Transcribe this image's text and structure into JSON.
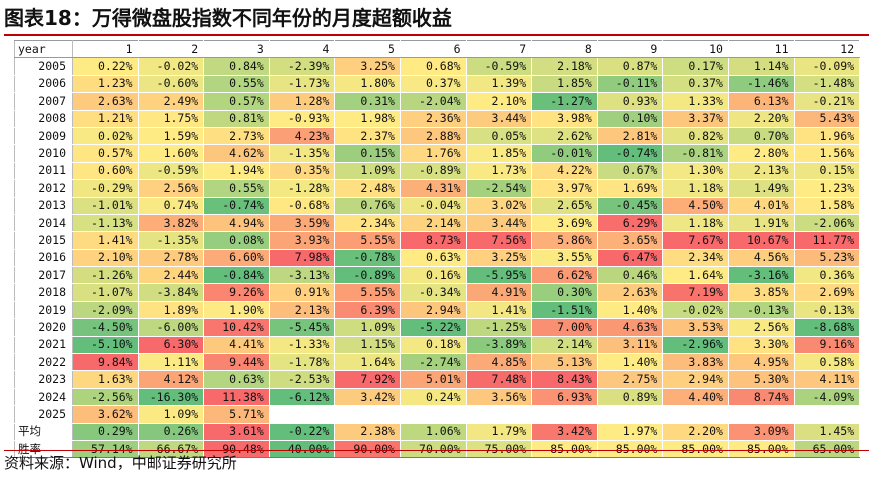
{
  "title": "图表18：万得微盘股指数不同年份的月度超额收益",
  "source": "资料来源：Wind，中邮证券研究所",
  "chart_data": {
    "type": "heatmap",
    "corner_label": "year",
    "columns": [
      "1",
      "2",
      "3",
      "4",
      "5",
      "6",
      "7",
      "8",
      "9",
      "10",
      "11",
      "12"
    ],
    "rows": [
      {
        "label": "2005",
        "cells": [
          "0.22%",
          "-0.02%",
          "0.84%",
          "-2.39%",
          "3.25%",
          "0.68%",
          "-0.59%",
          "2.18%",
          "0.87%",
          "0.17%",
          "1.14%",
          "-0.09%"
        ],
        "values": [
          0.22,
          -0.02,
          0.84,
          -2.39,
          3.25,
          0.68,
          -0.59,
          2.18,
          0.87,
          0.17,
          1.14,
          -0.09
        ]
      },
      {
        "label": "2006",
        "cells": [
          "1.23%",
          "-0.60%",
          "0.55%",
          "-1.73%",
          "1.80%",
          "0.37%",
          "1.39%",
          "1.85%",
          "-0.11%",
          "0.37%",
          "-1.46%",
          "-1.48%"
        ],
        "values": [
          1.23,
          -0.6,
          0.55,
          -1.73,
          1.8,
          0.37,
          1.39,
          1.85,
          -0.11,
          0.37,
          -1.46,
          -1.48
        ]
      },
      {
        "label": "2007",
        "cells": [
          "2.63%",
          "2.49%",
          "0.57%",
          "1.28%",
          "0.31%",
          "-2.04%",
          "2.10%",
          "-1.27%",
          "0.93%",
          "1.33%",
          "6.13%",
          "-0.21%"
        ],
        "values": [
          2.63,
          2.49,
          0.57,
          1.28,
          0.31,
          -2.04,
          2.1,
          -1.27,
          0.93,
          1.33,
          6.13,
          -0.21
        ]
      },
      {
        "label": "2008",
        "cells": [
          "1.21%",
          "1.75%",
          "0.81%",
          "-0.93%",
          "1.98%",
          "2.36%",
          "3.44%",
          "3.98%",
          "0.10%",
          "3.37%",
          "2.20%",
          "5.43%"
        ],
        "values": [
          1.21,
          1.75,
          0.81,
          -0.93,
          1.98,
          2.36,
          3.44,
          3.98,
          0.1,
          3.37,
          2.2,
          5.43
        ]
      },
      {
        "label": "2009",
        "cells": [
          "0.02%",
          "1.59%",
          "2.73%",
          "4.23%",
          "2.37%",
          "2.88%",
          "0.05%",
          "2.62%",
          "2.81%",
          "0.82%",
          "0.70%",
          "1.96%"
        ],
        "values": [
          0.02,
          1.59,
          2.73,
          4.23,
          2.37,
          2.88,
          0.05,
          2.62,
          2.81,
          0.82,
          0.7,
          1.96
        ]
      },
      {
        "label": "2010",
        "cells": [
          "0.57%",
          "1.60%",
          "4.62%",
          "-1.35%",
          "0.15%",
          "1.76%",
          "1.85%",
          "-0.01%",
          "-0.74%",
          "-0.81%",
          "2.80%",
          "1.56%"
        ],
        "values": [
          0.57,
          1.6,
          4.62,
          -1.35,
          0.15,
          1.76,
          1.85,
          -0.01,
          -0.74,
          -0.81,
          2.8,
          1.56
        ]
      },
      {
        "label": "2011",
        "cells": [
          "0.60%",
          "-0.59%",
          "1.94%",
          "0.35%",
          "1.09%",
          "-0.89%",
          "1.73%",
          "4.22%",
          "0.67%",
          "1.30%",
          "2.13%",
          "0.15%"
        ],
        "values": [
          0.6,
          -0.59,
          1.94,
          0.35,
          1.09,
          -0.89,
          1.73,
          4.22,
          0.67,
          1.3,
          2.13,
          0.15
        ]
      },
      {
        "label": "2012",
        "cells": [
          "-0.29%",
          "2.56%",
          "0.55%",
          "-1.28%",
          "2.48%",
          "4.31%",
          "-2.54%",
          "3.97%",
          "1.69%",
          "1.18%",
          "1.49%",
          "1.23%"
        ],
        "values": [
          -0.29,
          2.56,
          0.55,
          -1.28,
          2.48,
          4.31,
          -2.54,
          3.97,
          1.69,
          1.18,
          1.49,
          1.23
        ]
      },
      {
        "label": "2013",
        "cells": [
          "-1.01%",
          "0.74%",
          "-0.74%",
          "-0.68%",
          "0.76%",
          "-0.04%",
          "3.02%",
          "2.65%",
          "-0.45%",
          "4.50%",
          "4.01%",
          "1.58%"
        ],
        "values": [
          -1.01,
          0.74,
          -0.74,
          -0.68,
          0.76,
          -0.04,
          3.02,
          2.65,
          -0.45,
          4.5,
          4.01,
          1.58
        ]
      },
      {
        "label": "2014",
        "cells": [
          "-1.13%",
          "3.82%",
          "4.94%",
          "3.59%",
          "2.34%",
          "2.14%",
          "3.44%",
          "3.69%",
          "6.29%",
          "1.18%",
          "1.91%",
          "-2.06%"
        ],
        "values": [
          -1.13,
          3.82,
          4.94,
          3.59,
          2.34,
          2.14,
          3.44,
          3.69,
          6.29,
          1.18,
          1.91,
          -2.06
        ]
      },
      {
        "label": "2015",
        "cells": [
          "1.41%",
          "-1.35%",
          "0.08%",
          "3.93%",
          "5.55%",
          "8.73%",
          "7.56%",
          "5.86%",
          "3.65%",
          "7.67%",
          "10.67%",
          "11.77%"
        ],
        "values": [
          1.41,
          -1.35,
          0.08,
          3.93,
          5.55,
          8.73,
          7.56,
          5.86,
          3.65,
          7.67,
          10.67,
          11.77
        ]
      },
      {
        "label": "2016",
        "cells": [
          "2.10%",
          "2.78%",
          "6.60%",
          "7.98%",
          "-0.78%",
          "0.63%",
          "3.25%",
          "3.55%",
          "6.47%",
          "2.34%",
          "4.56%",
          "5.23%"
        ],
        "values": [
          2.1,
          2.78,
          6.6,
          7.98,
          -0.78,
          0.63,
          3.25,
          3.55,
          6.47,
          2.34,
          4.56,
          5.23
        ]
      },
      {
        "label": "2017",
        "cells": [
          "-1.26%",
          "2.44%",
          "-0.84%",
          "-3.13%",
          "-0.89%",
          "0.16%",
          "-5.95%",
          "6.62%",
          "0.46%",
          "1.64%",
          "-3.16%",
          "0.36%"
        ],
        "values": [
          -1.26,
          2.44,
          -0.84,
          -3.13,
          -0.89,
          0.16,
          -5.95,
          6.62,
          0.46,
          1.64,
          -3.16,
          0.36
        ]
      },
      {
        "label": "2018",
        "cells": [
          "-1.07%",
          "-3.84%",
          "9.26%",
          "0.91%",
          "5.55%",
          "-0.34%",
          "4.91%",
          "0.30%",
          "2.63%",
          "7.19%",
          "3.85%",
          "2.69%"
        ],
        "values": [
          -1.07,
          -3.84,
          9.26,
          0.91,
          5.55,
          -0.34,
          4.91,
          0.3,
          2.63,
          7.19,
          3.85,
          2.69
        ]
      },
      {
        "label": "2019",
        "cells": [
          "-2.09%",
          "1.89%",
          "1.90%",
          "2.13%",
          "6.39%",
          "2.94%",
          "1.41%",
          "-1.51%",
          "1.40%",
          "-0.02%",
          "-0.13%",
          "-0.13%"
        ],
        "values": [
          -2.09,
          1.89,
          1.9,
          2.13,
          6.39,
          2.94,
          1.41,
          -1.51,
          1.4,
          -0.02,
          -0.13,
          -0.13
        ]
      },
      {
        "label": "2020",
        "cells": [
          "-4.50%",
          "-6.00%",
          "10.42%",
          "-5.45%",
          "1.09%",
          "-5.22%",
          "-1.25%",
          "7.00%",
          "4.63%",
          "3.53%",
          "2.56%",
          "-8.68%"
        ],
        "values": [
          -4.5,
          -6.0,
          10.42,
          -5.45,
          1.09,
          -5.22,
          -1.25,
          7.0,
          4.63,
          3.53,
          2.56,
          -8.68
        ]
      },
      {
        "label": "2021",
        "cells": [
          "-5.10%",
          "6.30%",
          "4.41%",
          "-1.33%",
          "1.15%",
          "0.18%",
          "-3.89%",
          "2.14%",
          "3.11%",
          "-2.96%",
          "3.30%",
          "9.16%"
        ],
        "values": [
          -5.1,
          6.3,
          4.41,
          -1.33,
          1.15,
          0.18,
          -3.89,
          2.14,
          3.11,
          -2.96,
          3.3,
          9.16
        ]
      },
      {
        "label": "2022",
        "cells": [
          "9.84%",
          "1.11%",
          "9.44%",
          "-1.78%",
          "1.64%",
          "-2.74%",
          "4.85%",
          "5.13%",
          "1.40%",
          "3.83%",
          "4.95%",
          "0.58%"
        ],
        "values": [
          9.84,
          1.11,
          9.44,
          -1.78,
          1.64,
          -2.74,
          4.85,
          5.13,
          1.4,
          3.83,
          4.95,
          0.58
        ]
      },
      {
        "label": "2023",
        "cells": [
          "1.63%",
          "4.12%",
          "0.63%",
          "-2.53%",
          "7.92%",
          "5.01%",
          "7.48%",
          "8.43%",
          "2.75%",
          "2.94%",
          "5.30%",
          "4.11%"
        ],
        "values": [
          1.63,
          4.12,
          0.63,
          -2.53,
          7.92,
          5.01,
          7.48,
          8.43,
          2.75,
          2.94,
          5.3,
          4.11
        ]
      },
      {
        "label": "2024",
        "cells": [
          "-2.56%",
          "-16.30%",
          "11.38%",
          "-6.12%",
          "3.42%",
          "0.24%",
          "3.56%",
          "6.93%",
          "0.89%",
          "4.40%",
          "8.74%",
          "-4.09%"
        ],
        "values": [
          -2.56,
          -16.3,
          11.38,
          -6.12,
          3.42,
          0.24,
          3.56,
          6.93,
          0.89,
          4.4,
          8.74,
          -4.09
        ]
      },
      {
        "label": "2025",
        "cells": [
          "3.62%",
          "1.09%",
          "5.71%",
          "",
          "",
          "",
          "",
          "",
          "",
          "",
          "",
          ""
        ],
        "values": [
          3.62,
          1.09,
          5.71,
          null,
          null,
          null,
          null,
          null,
          null,
          null,
          null,
          null
        ]
      }
    ],
    "summary_rows": [
      {
        "label": "平均",
        "cells": [
          "0.29%",
          "0.26%",
          "3.61%",
          "-0.22%",
          "2.38%",
          "1.06%",
          "1.79%",
          "3.42%",
          "1.97%",
          "2.20%",
          "3.09%",
          "1.45%"
        ],
        "values": [
          0.29,
          0.26,
          3.61,
          -0.22,
          2.38,
          1.06,
          1.79,
          3.42,
          1.97,
          2.2,
          3.09,
          1.45
        ]
      },
      {
        "label": "胜率",
        "cells": [
          "57.14%",
          "66.67%",
          "90.48%",
          "40.00%",
          "90.00%",
          "70.00%",
          "75.00%",
          "85.00%",
          "85.00%",
          "85.00%",
          "85.00%",
          "65.00%"
        ],
        "values": [
          57.14,
          66.67,
          90.48,
          40.0,
          90.0,
          70.0,
          75.0,
          85.0,
          85.0,
          85.0,
          85.0,
          65.0
        ]
      }
    ],
    "color_scale": {
      "low": "#63be7b",
      "mid": "#ffeb84",
      "high": "#f8696b"
    }
  }
}
